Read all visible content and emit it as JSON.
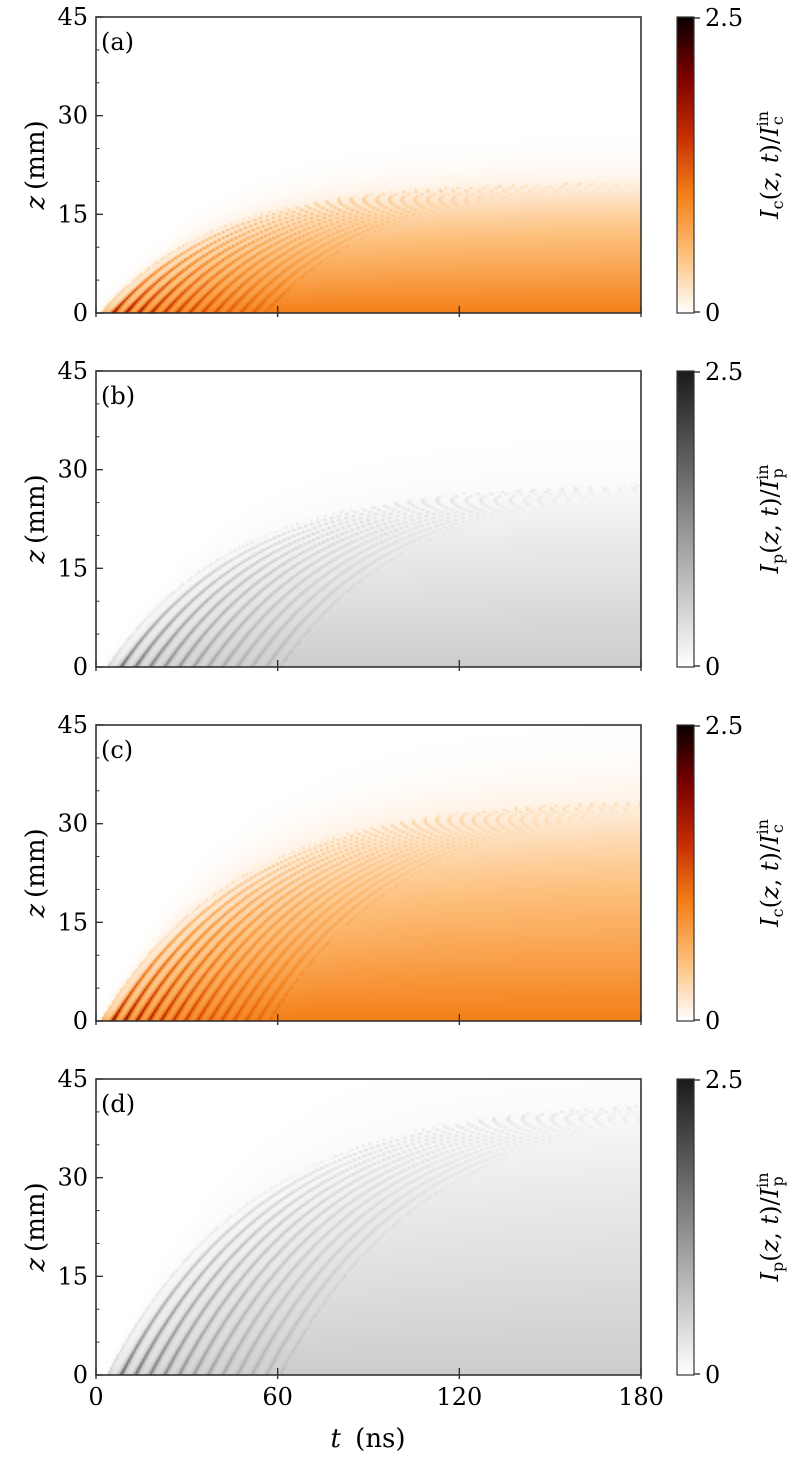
{
  "chart_data": [
    {
      "type": "heatmap",
      "panel_label": "(a)",
      "colormap": "orange",
      "colormap_stops": [
        "#ffffff",
        "#fdbf7a",
        "#f47f17",
        "#c42d02",
        "#7a0000",
        "#0a0000"
      ],
      "xlabel": "t (ns)",
      "ylabel": "z (mm)",
      "xlim": [
        0,
        180
      ],
      "ylim": [
        0,
        45
      ],
      "xticks": [
        "0",
        "60",
        "120",
        "180"
      ],
      "yticks": [
        "0",
        "15",
        "30",
        "45"
      ],
      "colorbar": {
        "label": "I_c(z,t)/I_c^in",
        "min_label": "0",
        "max_label": "2.5",
        "range": [
          0,
          2.5
        ]
      },
      "front": {
        "z_max_mm": 20,
        "tau_ns": 38,
        "t0_ns": 1.5
      },
      "fringes": {
        "count": 13,
        "spacing_ns": 4.2,
        "peak_value": 2.5,
        "base_value": 1.0
      }
    },
    {
      "type": "heatmap",
      "panel_label": "(b)",
      "colormap": "gray",
      "colormap_stops": [
        "#ffffff",
        "#1a1a1a"
      ],
      "xlabel": "t (ns)",
      "ylabel": "z (mm)",
      "xlim": [
        0,
        180
      ],
      "ylim": [
        0,
        45
      ],
      "xticks": [
        "0",
        "60",
        "120",
        "180"
      ],
      "yticks": [
        "0",
        "15",
        "30",
        "45"
      ],
      "colorbar": {
        "label": "I_p(z,t)/I_p^in",
        "min_label": "0",
        "max_label": "2.5",
        "range": [
          0,
          2.5
        ]
      },
      "front": {
        "z_max_mm": 28,
        "tau_ns": 42,
        "t0_ns": 3.5
      },
      "fringes": {
        "count": 12,
        "spacing_ns": 4.8,
        "peak_value": 2.0,
        "base_value": 0.55
      }
    },
    {
      "type": "heatmap",
      "panel_label": "(c)",
      "colormap": "orange",
      "colormap_stops": [
        "#ffffff",
        "#fdbf7a",
        "#f47f17",
        "#c42d02",
        "#7a0000",
        "#0a0000"
      ],
      "xlabel": "t (ns)",
      "ylabel": "z (mm)",
      "xlim": [
        0,
        180
      ],
      "ylim": [
        0,
        45
      ],
      "xticks": [
        "0",
        "60",
        "120",
        "180"
      ],
      "yticks": [
        "0",
        "15",
        "30",
        "45"
      ],
      "colorbar": {
        "label": "I_c(z,t)/I_c^in",
        "min_label": "0",
        "max_label": "2.5",
        "range": [
          0,
          2.5
        ]
      },
      "front": {
        "z_max_mm": 34,
        "tau_ns": 45,
        "t0_ns": 1.5
      },
      "fringes": {
        "count": 14,
        "spacing_ns": 4.0,
        "peak_value": 2.5,
        "base_value": 1.0
      }
    },
    {
      "type": "heatmap",
      "panel_label": "(d)",
      "colormap": "gray",
      "colormap_stops": [
        "#ffffff",
        "#1a1a1a"
      ],
      "xlabel": "t (ns)",
      "ylabel": "z (mm)",
      "xlim": [
        0,
        180
      ],
      "ylim": [
        0,
        45
      ],
      "xticks": [
        "0",
        "60",
        "120",
        "180"
      ],
      "yticks": [
        "0",
        "15",
        "30",
        "45"
      ],
      "colorbar": {
        "label": "I_p(z,t)/I_p^in",
        "min_label": "0",
        "max_label": "2.5",
        "range": [
          0,
          2.5
        ]
      },
      "front": {
        "z_max_mm": 42,
        "tau_ns": 48,
        "t0_ns": 3.5
      },
      "fringes": {
        "count": 12,
        "spacing_ns": 4.8,
        "peak_value": 2.0,
        "base_value": 0.55
      }
    }
  ],
  "shared_x_axis_label": {
    "var": "t",
    "unit": "(ns)"
  }
}
